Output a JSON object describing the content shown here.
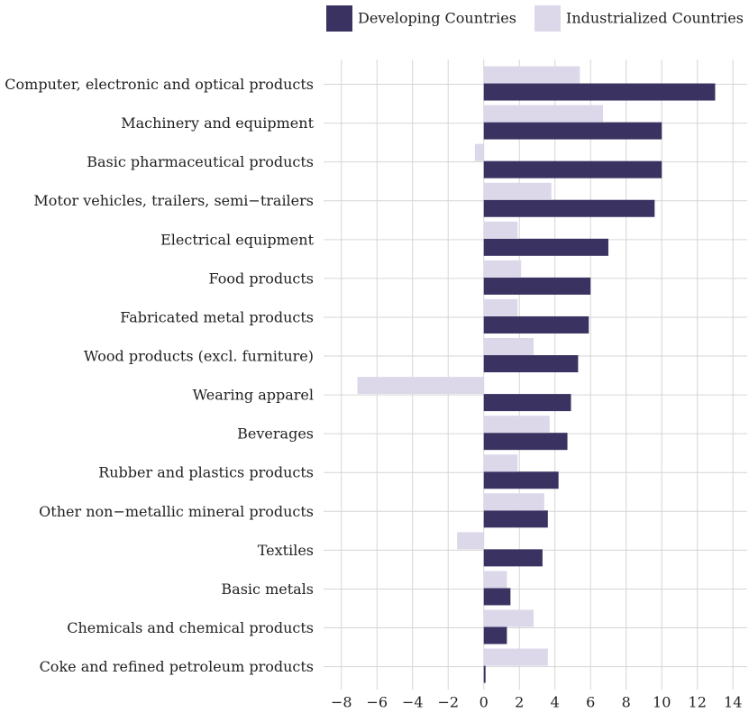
{
  "chart_data": {
    "type": "hbar",
    "categories": [
      "Computer, electronic and optical products",
      "Machinery and equipment",
      "Basic pharmaceutical products",
      "Motor vehicles, trailers, semi−trailers",
      "Electrical equipment",
      "Food products",
      "Fabricated metal products",
      "Wood products (excl. furniture)",
      "Wearing apparel",
      "Beverages",
      "Rubber and plastics products",
      "Other non−metallic mineral products",
      "Textiles",
      "Basic metals",
      "Chemicals and chemical products",
      "Coke and refined petroleum products"
    ],
    "series": [
      {
        "name": "Developing Countries",
        "color": "#3a3261",
        "values": [
          13.0,
          10.0,
          10.0,
          9.6,
          7.0,
          6.0,
          5.9,
          5.3,
          4.9,
          4.7,
          4.2,
          3.6,
          3.3,
          1.5,
          1.3,
          0.1
        ]
      },
      {
        "name": "Industrialized Countries",
        "color": "#dcd8ea",
        "values": [
          5.4,
          6.7,
          -0.5,
          3.8,
          1.9,
          2.1,
          1.9,
          2.8,
          -7.1,
          3.7,
          1.9,
          3.4,
          -1.5,
          1.3,
          2.8,
          3.6
        ]
      }
    ],
    "xlim": [
      -9,
      14.8
    ],
    "xticks": [
      {
        "value": -8,
        "label": "−8"
      },
      {
        "value": -6,
        "label": "−6"
      },
      {
        "value": -4,
        "label": "−4"
      },
      {
        "value": -2,
        "label": "−2"
      },
      0,
      2,
      4,
      6,
      8,
      10,
      12,
      14
    ],
    "grid": true
  }
}
